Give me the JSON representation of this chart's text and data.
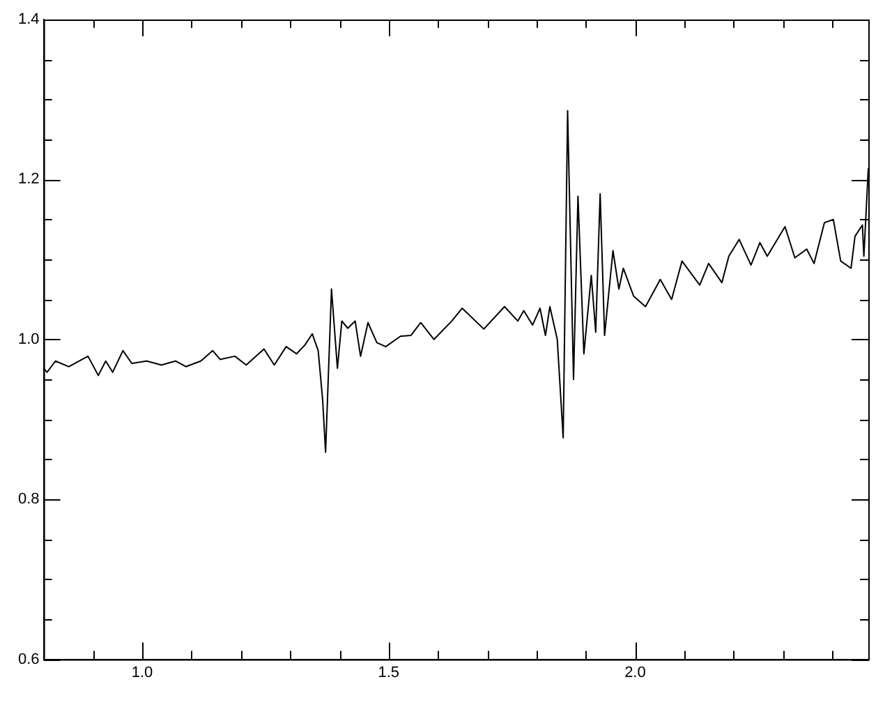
{
  "chart_data": {
    "type": "line",
    "color": "#000000",
    "marker": "none",
    "grid": false,
    "legend": false,
    "xlim": [
      0.8,
      2.473
    ],
    "xticks": [
      {
        "value": 0.9,
        "label": null
      },
      {
        "value": 1.0,
        "label": "1.0"
      },
      {
        "value": 1.1,
        "label": null
      },
      {
        "value": 1.2,
        "label": null
      },
      {
        "value": 1.3,
        "label": null
      },
      {
        "value": 1.4,
        "label": null
      },
      {
        "value": 1.5,
        "label": "1.5"
      },
      {
        "value": 1.6,
        "label": null
      },
      {
        "value": 1.7,
        "label": null
      },
      {
        "value": 1.8,
        "label": null
      },
      {
        "value": 1.9,
        "label": null
      },
      {
        "value": 2.0,
        "label": "2.0"
      },
      {
        "value": 2.1,
        "label": null
      },
      {
        "value": 2.2,
        "label": null
      },
      {
        "value": 2.3,
        "label": null
      },
      {
        "value": 2.4,
        "label": null
      }
    ],
    "ylim": [
      0.6,
      1.4
    ],
    "yticks": [
      {
        "value": 0.6,
        "label": "0.6"
      },
      {
        "value": 0.65,
        "label": null
      },
      {
        "value": 0.7,
        "label": null
      },
      {
        "value": 0.75,
        "label": null
      },
      {
        "value": 0.8,
        "label": "0.8"
      },
      {
        "value": 0.85,
        "label": null
      },
      {
        "value": 0.9,
        "label": null
      },
      {
        "value": 0.95,
        "label": null
      },
      {
        "value": 1.0,
        "label": "1.0"
      },
      {
        "value": 1.05,
        "label": null
      },
      {
        "value": 1.1,
        "label": null
      },
      {
        "value": 1.15,
        "label": null
      },
      {
        "value": 1.2,
        "label": "1.2"
      },
      {
        "value": 1.25,
        "label": null
      },
      {
        "value": 1.3,
        "label": null
      },
      {
        "value": 1.35,
        "label": null
      },
      {
        "value": 1.4,
        "label": "1.4"
      }
    ],
    "x": [
      0.8,
      0.807,
      0.824,
      0.851,
      0.89,
      0.911,
      0.926,
      0.94,
      0.961,
      0.979,
      1.009,
      1.039,
      1.068,
      1.089,
      1.119,
      1.143,
      1.158,
      1.188,
      1.211,
      1.247,
      1.268,
      1.292,
      1.313,
      1.33,
      1.345,
      1.357,
      1.366,
      1.372,
      1.384,
      1.396,
      1.405,
      1.417,
      1.432,
      1.443,
      1.458,
      1.476,
      1.494,
      1.524,
      1.545,
      1.565,
      1.592,
      1.628,
      1.649,
      1.693,
      1.735,
      1.762,
      1.774,
      1.792,
      1.807,
      1.818,
      1.827,
      1.842,
      1.854,
      1.863,
      1.875,
      1.884,
      1.896,
      1.911,
      1.92,
      1.929,
      1.938,
      1.955,
      1.967,
      1.976,
      1.997,
      2.021,
      2.051,
      2.074,
      2.095,
      2.131,
      2.149,
      2.176,
      2.19,
      2.211,
      2.235,
      2.253,
      2.268,
      2.304,
      2.324,
      2.348,
      2.363,
      2.384,
      2.402,
      2.417,
      2.438,
      2.446,
      2.461,
      2.464,
      2.473
    ],
    "values": [
      0.964,
      0.959,
      0.973,
      0.966,
      0.979,
      0.955,
      0.973,
      0.959,
      0.986,
      0.97,
      0.973,
      0.968,
      0.973,
      0.966,
      0.973,
      0.986,
      0.975,
      0.979,
      0.968,
      0.988,
      0.968,
      0.991,
      0.982,
      0.993,
      1.007,
      0.986,
      0.925,
      0.859,
      1.063,
      0.964,
      1.023,
      1.014,
      1.023,
      0.979,
      1.021,
      0.996,
      0.991,
      1.004,
      1.005,
      1.021,
      1.0,
      1.023,
      1.039,
      1.013,
      1.041,
      1.023,
      1.036,
      1.018,
      1.039,
      1.005,
      1.041,
      1.0,
      0.877,
      1.286,
      0.95,
      1.179,
      0.982,
      1.08,
      1.009,
      1.182,
      1.005,
      1.111,
      1.063,
      1.089,
      1.054,
      1.041,
      1.075,
      1.05,
      1.098,
      1.068,
      1.095,
      1.071,
      1.104,
      1.125,
      1.093,
      1.121,
      1.104,
      1.141,
      1.102,
      1.113,
      1.095,
      1.146,
      1.15,
      1.098,
      1.089,
      1.129,
      1.143,
      1.104,
      1.214
    ]
  }
}
